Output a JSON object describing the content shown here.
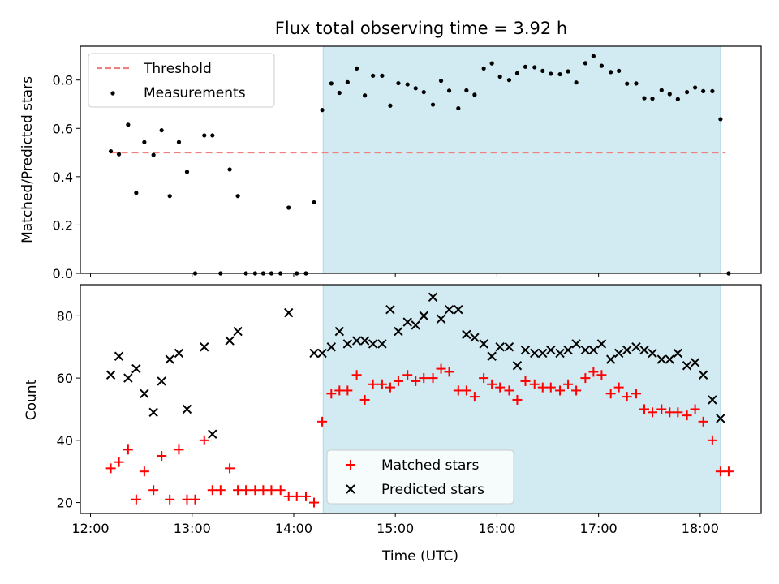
{
  "chart_data": {
    "title": "Flux total observing time = 3.92 h",
    "xlabel": "Time (UTC)",
    "x_ticks": [
      "12:00",
      "13:00",
      "14:00",
      "15:00",
      "16:00",
      "17:00",
      "18:00"
    ],
    "x_tick_values_hours": [
      12,
      13,
      14,
      15,
      16,
      17,
      18
    ],
    "xlim_hours": [
      11.9,
      18.6
    ],
    "observing_window_hours": [
      14.29,
      18.2
    ],
    "window_color": "#add8e6",
    "panels": [
      {
        "type": "scatter",
        "ylabel": "Matched/Predicted stars",
        "ylim": [
          0,
          0.94
        ],
        "y_ticks": [
          0.0,
          0.2,
          0.4,
          0.6,
          0.8
        ],
        "y_tick_labels": [
          "0.0",
          "0.2",
          "0.4",
          "0.6",
          "0.8"
        ],
        "threshold": {
          "label": "Threshold",
          "value": 0.5,
          "x_range": [
            12.2,
            18.25
          ],
          "color": "#f08080"
        },
        "legend": [
          {
            "label": "Threshold",
            "style": "dashed-line",
            "color": "#f08080"
          },
          {
            "label": "Measurements",
            "style": "dot",
            "color": "#000000"
          }
        ],
        "series": [
          {
            "name": "Measurements",
            "marker": "dot",
            "color": "#000000",
            "points": [
              [
                12.2,
                0.505
              ],
              [
                12.28,
                0.493
              ],
              [
                12.37,
                0.615
              ],
              [
                12.45,
                0.333
              ],
              [
                12.53,
                0.543
              ],
              [
                12.62,
                0.49
              ],
              [
                12.7,
                0.592
              ],
              [
                12.78,
                0.32
              ],
              [
                12.87,
                0.543
              ],
              [
                12.95,
                0.42
              ],
              [
                13.03,
                0.0
              ],
              [
                13.12,
                0.571
              ],
              [
                13.2,
                0.571
              ],
              [
                13.28,
                0.0
              ],
              [
                13.37,
                0.43
              ],
              [
                13.45,
                0.32
              ],
              [
                13.53,
                0.0
              ],
              [
                13.62,
                0.0
              ],
              [
                13.7,
                0.0
              ],
              [
                13.78,
                0.0
              ],
              [
                13.87,
                0.0
              ],
              [
                13.95,
                0.272
              ],
              [
                14.03,
                0.0
              ],
              [
                14.12,
                0.0
              ],
              [
                14.2,
                0.294
              ],
              [
                14.28,
                0.676
              ],
              [
                14.37,
                0.786
              ],
              [
                14.45,
                0.747
              ],
              [
                14.53,
                0.791
              ],
              [
                14.62,
                0.848
              ],
              [
                14.7,
                0.736
              ],
              [
                14.78,
                0.818
              ],
              [
                14.87,
                0.818
              ],
              [
                14.95,
                0.694
              ],
              [
                15.03,
                0.787
              ],
              [
                15.12,
                0.782
              ],
              [
                15.2,
                0.766
              ],
              [
                15.28,
                0.75
              ],
              [
                15.37,
                0.698
              ],
              [
                15.45,
                0.797
              ],
              [
                15.53,
                0.756
              ],
              [
                15.62,
                0.683
              ],
              [
                15.7,
                0.757
              ],
              [
                15.78,
                0.739
              ],
              [
                15.87,
                0.848
              ],
              [
                15.95,
                0.869
              ],
              [
                16.03,
                0.814
              ],
              [
                16.12,
                0.8
              ],
              [
                16.2,
                0.828
              ],
              [
                16.28,
                0.855
              ],
              [
                16.37,
                0.853
              ],
              [
                16.45,
                0.838
              ],
              [
                16.53,
                0.826
              ],
              [
                16.62,
                0.824
              ],
              [
                16.7,
                0.836
              ],
              [
                16.78,
                0.79
              ],
              [
                16.87,
                0.87
              ],
              [
                16.95,
                0.899
              ],
              [
                17.03,
                0.859
              ],
              [
                17.12,
                0.833
              ],
              [
                17.2,
                0.838
              ],
              [
                17.28,
                0.785
              ],
              [
                17.37,
                0.786
              ],
              [
                17.45,
                0.725
              ],
              [
                17.53,
                0.723
              ],
              [
                17.62,
                0.758
              ],
              [
                17.7,
                0.742
              ],
              [
                17.78,
                0.721
              ],
              [
                17.87,
                0.75
              ],
              [
                17.95,
                0.769
              ],
              [
                18.03,
                0.754
              ],
              [
                18.12,
                0.754
              ],
              [
                18.2,
                0.638
              ],
              [
                18.28,
                0.0
              ]
            ]
          }
        ]
      },
      {
        "type": "scatter",
        "ylabel": "Count",
        "ylim": [
          16.5,
          90
        ],
        "y_ticks": [
          20,
          40,
          60,
          80
        ],
        "y_tick_labels": [
          "20",
          "40",
          "60",
          "80"
        ],
        "legend": [
          {
            "label": "Matched stars",
            "style": "plus",
            "color": "#ff0000"
          },
          {
            "label": "Predicted stars",
            "style": "cross",
            "color": "#000000"
          }
        ],
        "series": [
          {
            "name": "Matched stars",
            "marker": "plus",
            "color": "#ff0000",
            "points": [
              [
                12.2,
                31
              ],
              [
                12.28,
                33
              ],
              [
                12.37,
                37
              ],
              [
                12.45,
                21
              ],
              [
                12.53,
                30
              ],
              [
                12.62,
                24
              ],
              [
                12.7,
                35
              ],
              [
                12.78,
                21
              ],
              [
                12.87,
                37
              ],
              [
                12.95,
                21
              ],
              [
                13.03,
                21
              ],
              [
                13.12,
                40
              ],
              [
                13.2,
                24
              ],
              [
                13.28,
                24
              ],
              [
                13.37,
                31
              ],
              [
                13.45,
                24
              ],
              [
                13.53,
                24
              ],
              [
                13.62,
                24
              ],
              [
                13.7,
                24
              ],
              [
                13.78,
                24
              ],
              [
                13.87,
                24
              ],
              [
                13.95,
                22
              ],
              [
                14.03,
                22
              ],
              [
                14.12,
                22
              ],
              [
                14.2,
                20
              ],
              [
                14.28,
                46
              ],
              [
                14.37,
                55
              ],
              [
                14.45,
                56
              ],
              [
                14.53,
                56
              ],
              [
                14.62,
                61
              ],
              [
                14.7,
                53
              ],
              [
                14.78,
                58
              ],
              [
                14.87,
                58
              ],
              [
                14.95,
                57
              ],
              [
                15.03,
                59
              ],
              [
                15.12,
                61
              ],
              [
                15.2,
                59
              ],
              [
                15.28,
                60
              ],
              [
                15.37,
                60
              ],
              [
                15.45,
                63
              ],
              [
                15.53,
                62
              ],
              [
                15.62,
                56
              ],
              [
                15.7,
                56
              ],
              [
                15.78,
                54
              ],
              [
                15.87,
                60
              ],
              [
                15.95,
                58
              ],
              [
                16.03,
                57
              ],
              [
                16.12,
                56
              ],
              [
                16.2,
                53
              ],
              [
                16.28,
                59
              ],
              [
                16.37,
                58
              ],
              [
                16.45,
                57
              ],
              [
                16.53,
                57
              ],
              [
                16.62,
                56
              ],
              [
                16.7,
                58
              ],
              [
                16.78,
                56
              ],
              [
                16.87,
                60
              ],
              [
                16.95,
                62
              ],
              [
                17.03,
                61
              ],
              [
                17.12,
                55
              ],
              [
                17.2,
                57
              ],
              [
                17.28,
                54
              ],
              [
                17.37,
                55
              ],
              [
                17.45,
                50
              ],
              [
                17.53,
                49
              ],
              [
                17.62,
                50
              ],
              [
                17.7,
                49
              ],
              [
                17.78,
                49
              ],
              [
                17.87,
                48
              ],
              [
                17.95,
                50
              ],
              [
                18.03,
                46
              ],
              [
                18.12,
                40
              ],
              [
                18.2,
                30
              ],
              [
                18.28,
                30
              ]
            ]
          },
          {
            "name": "Predicted stars",
            "marker": "cross",
            "color": "#000000",
            "points": [
              [
                12.2,
                61
              ],
              [
                12.28,
                67
              ],
              [
                12.37,
                60
              ],
              [
                12.45,
                63
              ],
              [
                12.53,
                55
              ],
              [
                12.62,
                49
              ],
              [
                12.7,
                59
              ],
              [
                12.78,
                66
              ],
              [
                12.87,
                68
              ],
              [
                12.95,
                50
              ],
              [
                13.12,
                70
              ],
              [
                13.2,
                42
              ],
              [
                13.37,
                72
              ],
              [
                13.45,
                75
              ],
              [
                13.95,
                81
              ],
              [
                14.2,
                68
              ],
              [
                14.28,
                68
              ],
              [
                14.37,
                70
              ],
              [
                14.45,
                75
              ],
              [
                14.53,
                71
              ],
              [
                14.62,
                72
              ],
              [
                14.7,
                72
              ],
              [
                14.78,
                71
              ],
              [
                14.87,
                71
              ],
              [
                14.95,
                82
              ],
              [
                15.03,
                75
              ],
              [
                15.12,
                78
              ],
              [
                15.2,
                77
              ],
              [
                15.28,
                80
              ],
              [
                15.37,
                86
              ],
              [
                15.45,
                79
              ],
              [
                15.53,
                82
              ],
              [
                15.62,
                82
              ],
              [
                15.7,
                74
              ],
              [
                15.78,
                73
              ],
              [
                15.87,
                71
              ],
              [
                15.95,
                67
              ],
              [
                16.03,
                70
              ],
              [
                16.12,
                70
              ],
              [
                16.2,
                64
              ],
              [
                16.28,
                69
              ],
              [
                16.37,
                68
              ],
              [
                16.45,
                68
              ],
              [
                16.53,
                69
              ],
              [
                16.62,
                68
              ],
              [
                16.7,
                69
              ],
              [
                16.78,
                71
              ],
              [
                16.87,
                69
              ],
              [
                16.95,
                69
              ],
              [
                17.03,
                71
              ],
              [
                17.12,
                66
              ],
              [
                17.2,
                68
              ],
              [
                17.28,
                69
              ],
              [
                17.37,
                70
              ],
              [
                17.45,
                69
              ],
              [
                17.53,
                68
              ],
              [
                17.62,
                66
              ],
              [
                17.7,
                66
              ],
              [
                17.78,
                68
              ],
              [
                17.87,
                64
              ],
              [
                17.95,
                65
              ],
              [
                18.03,
                61
              ],
              [
                18.12,
                53
              ],
              [
                18.2,
                47
              ]
            ]
          }
        ]
      }
    ]
  }
}
